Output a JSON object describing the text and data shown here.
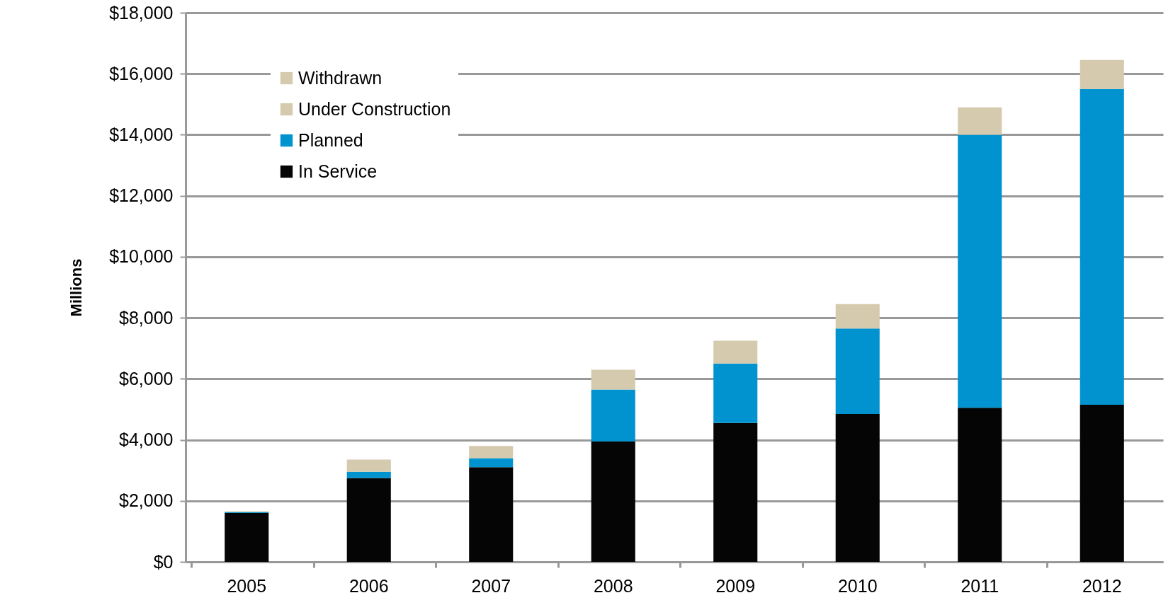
{
  "chart_data": {
    "type": "bar",
    "ylabel": "Millions",
    "stacked": true,
    "grid": "y",
    "legend": "top left",
    "categories": [
      "2005",
      "2006",
      "2007",
      "2008",
      "2009",
      "2010",
      "2011",
      "2012"
    ],
    "series": [
      {
        "name": "In Service",
        "color": "#050505",
        "values": [
          1600,
          2750,
          3100,
          3950,
          4550,
          4850,
          5050,
          5150
        ]
      },
      {
        "name": "Planned",
        "color": "#0093d0",
        "values": [
          30,
          200,
          300,
          1700,
          1950,
          2800,
          8950,
          10350
        ]
      },
      {
        "name": "Under Construction",
        "color": "#d5caad",
        "values": [
          0,
          0,
          0,
          0,
          0,
          0,
          0,
          0
        ]
      },
      {
        "name": "Withdrawn",
        "color": "#d5caad",
        "values": [
          30,
          400,
          400,
          650,
          750,
          800,
          900,
          950
        ]
      }
    ],
    "ylim": [
      0,
      18000
    ],
    "yticks": [
      {
        "value": 0,
        "label": "$0"
      },
      {
        "value": 2000,
        "label": "$2,000"
      },
      {
        "value": 4000,
        "label": "$4,000"
      },
      {
        "value": 6000,
        "label": "$6,000"
      },
      {
        "value": 8000,
        "label": "$8,000"
      },
      {
        "value": 10000,
        "label": "$10,000"
      },
      {
        "value": 12000,
        "label": "$12,000"
      },
      {
        "value": 14000,
        "label": "$14,000"
      },
      {
        "value": 16000,
        "label": "$16,000"
      },
      {
        "value": 18000,
        "label": "$18,000"
      }
    ]
  }
}
